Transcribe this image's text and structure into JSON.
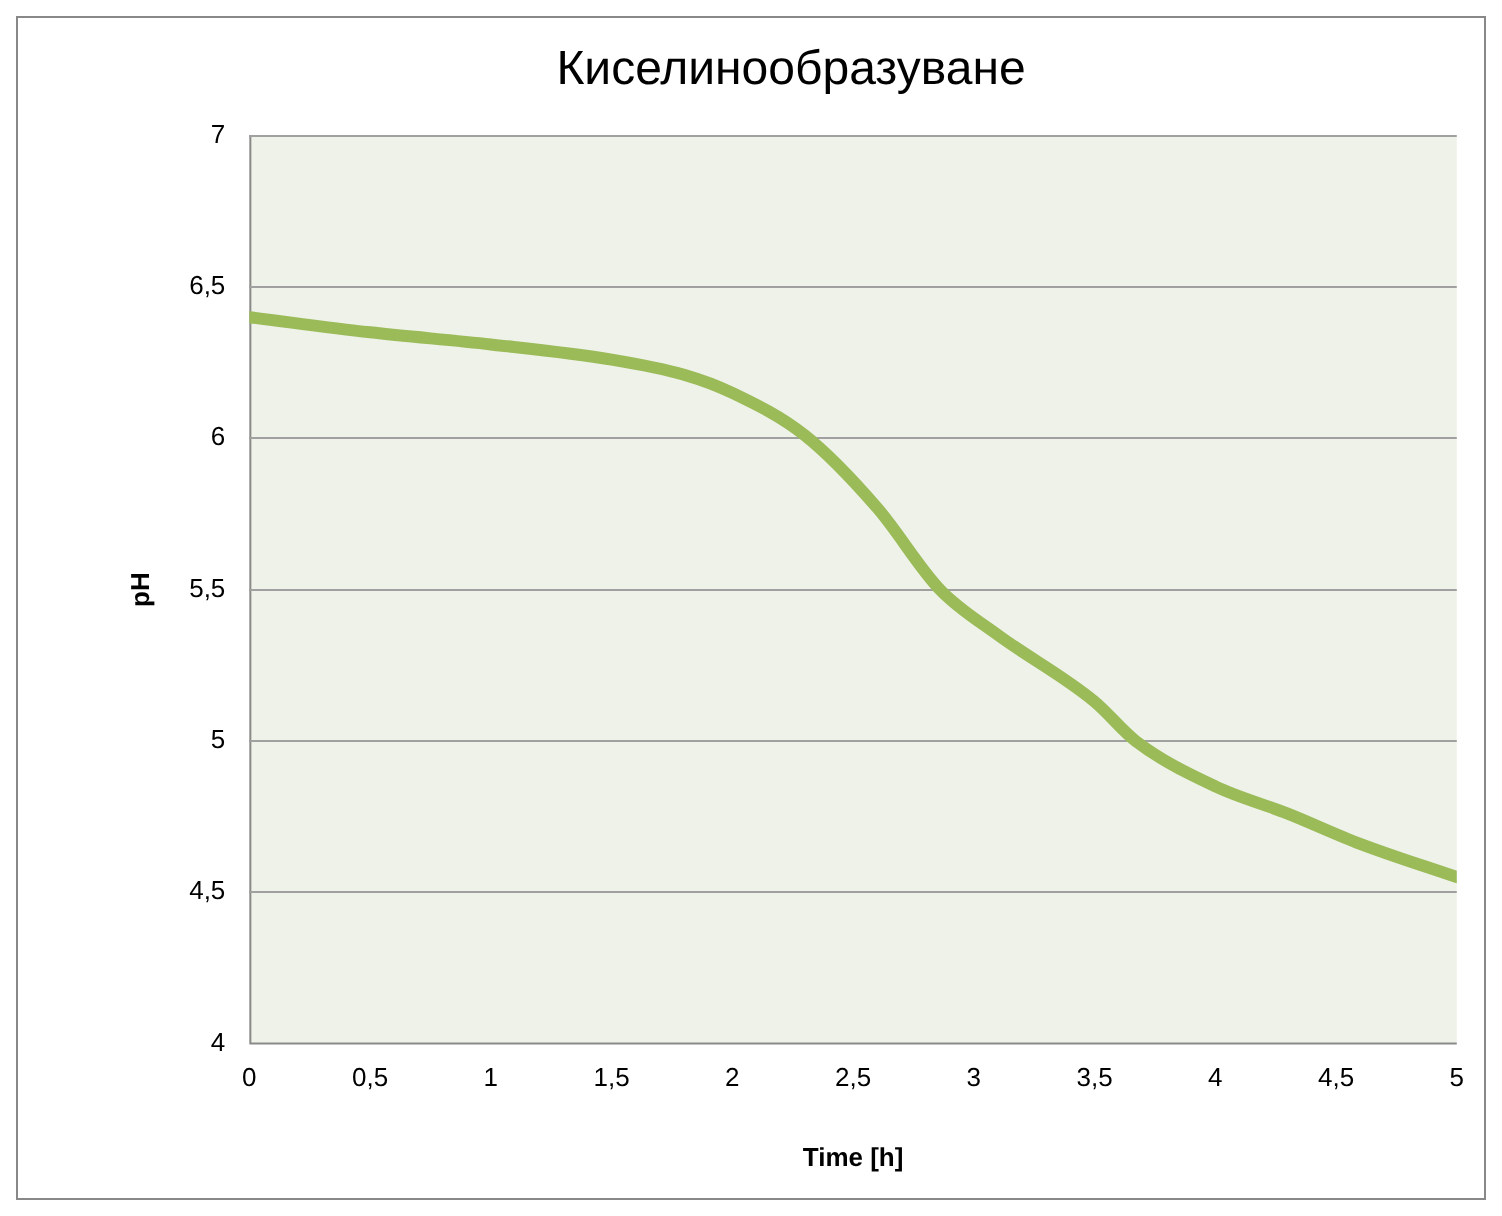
{
  "chart_data": {
    "type": "line",
    "title": "Киселинообразуване",
    "xlabel": "Time [h]",
    "ylabel": "pH",
    "x": [
      0,
      0.5,
      1,
      1.5,
      1.8,
      2,
      2.3,
      2.6,
      2.86,
      3.1,
      3.5,
      3.67,
      4,
      4.3,
      4.6,
      5
    ],
    "series": [
      {
        "color": "#9bbb59",
        "values": [
          6.4,
          6.35,
          6.31,
          6.26,
          6.21,
          6.15,
          6.01,
          5.77,
          5.5,
          5.35,
          5.13,
          5.0,
          4.85,
          4.76,
          4.66,
          4.55
        ]
      }
    ],
    "xlim": [
      0,
      5
    ],
    "xticks": [
      0,
      {
        "value": 0.5,
        "label": "0,5"
      },
      1,
      {
        "value": 1.5,
        "label": "1,5"
      },
      2,
      {
        "value": 2.5,
        "label": "2,5"
      },
      3,
      {
        "value": 3.5,
        "label": "3,5"
      },
      4,
      {
        "value": 4.5,
        "label": "4,5"
      },
      5
    ],
    "ylim": [
      4,
      7
    ],
    "yticks": [
      4,
      {
        "value": 4.5,
        "label": "4,5"
      },
      5,
      {
        "value": 5.5,
        "label": "5,5"
      },
      6,
      {
        "value": 6.5,
        "label": "6,5"
      },
      7
    ],
    "grid": "y",
    "legend": false,
    "marker": "none",
    "line_style": "solid"
  }
}
